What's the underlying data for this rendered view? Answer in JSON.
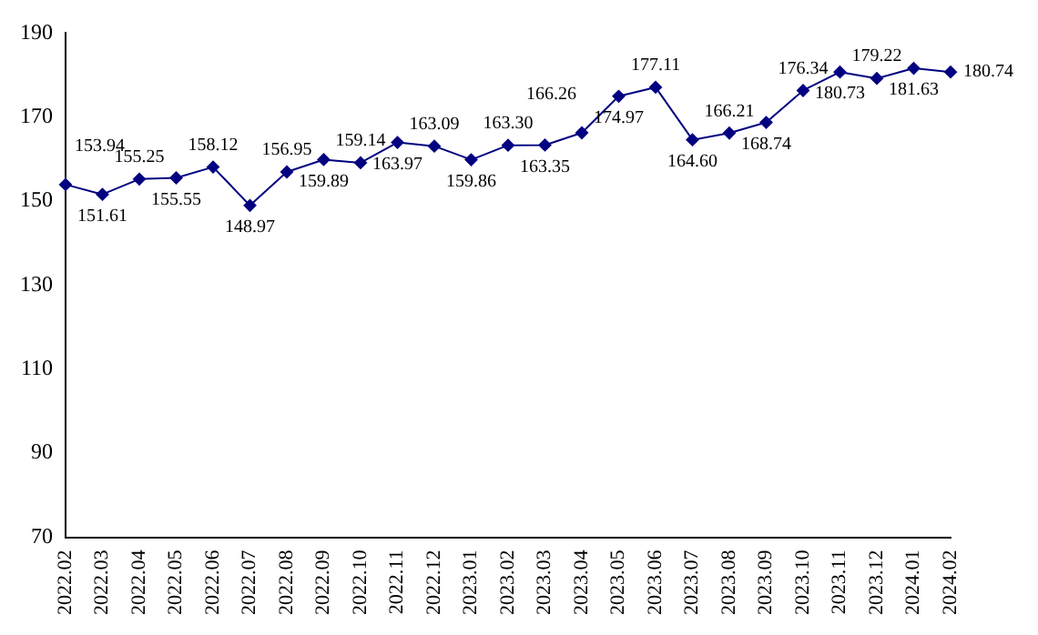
{
  "chart_data": {
    "type": "line",
    "categories": [
      "2022.02",
      "2022.03",
      "2022.04",
      "2022.05",
      "2022.06",
      "2022.07",
      "2022.08",
      "2022.09",
      "2022.10",
      "2022.11",
      "2022.12",
      "2023.01",
      "2023.02",
      "2023.03",
      "2023.04",
      "2023.05",
      "2023.06",
      "2023.07",
      "2023.08",
      "2023.09",
      "2023.10",
      "2023.11",
      "2023.12",
      "2024.01",
      "2024.02"
    ],
    "series": [
      {
        "color": "#000080",
        "values": [
          153.94,
          151.61,
          155.25,
          155.55,
          158.12,
          148.97,
          156.95,
          159.89,
          159.14,
          163.97,
          163.09,
          159.86,
          163.3,
          163.35,
          166.26,
          174.97,
          177.11,
          164.6,
          166.21,
          168.74,
          176.34,
          180.73,
          179.22,
          181.63,
          180.74
        ],
        "value_labels": [
          "153.94",
          "151.61",
          "155.25",
          "155.55",
          "158.12",
          "148.97",
          "156.95",
          "159.89",
          "159.14",
          "163.97",
          "163.09",
          "159.86",
          "163.30",
          "163.35",
          "166.26",
          "174.97",
          "177.11",
          "164.60",
          "166.21",
          "168.74",
          "176.34",
          "180.73",
          "179.22",
          "181.63",
          "180.74"
        ]
      }
    ],
    "ylim": [
      70,
      190
    ],
    "yticks": [
      70,
      90,
      110,
      130,
      150,
      170,
      190
    ],
    "grid": false,
    "legend": false,
    "marker": "diamond",
    "line_style": "solid"
  }
}
